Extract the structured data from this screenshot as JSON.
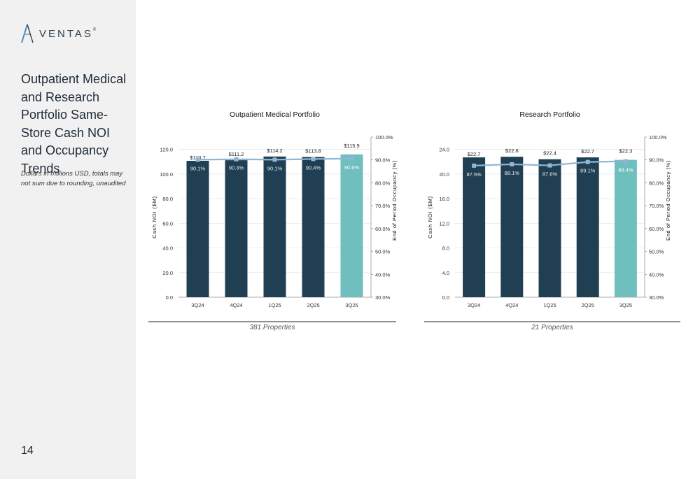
{
  "brand": {
    "name": "VENTAS",
    "mark": "®"
  },
  "page": {
    "title": "Outpatient Medical and Research Portfolio Same-Store Cash NOI and Occupancy Trends",
    "subtitle": "Dollars in millions USD, totals may not sum due to rounding, unaudited",
    "number": "14"
  },
  "colors": {
    "bar": "#213f52",
    "bar_highlight": "#6fbfbf",
    "line": "#8fb6d4",
    "sidebar": "#f1f1f1"
  },
  "chart_data": [
    {
      "type": "bar",
      "title": "Outpatient Medical Portfolio",
      "caption": "381 Properties",
      "ylabel": "Cash NOI ($M)",
      "y2label": "End of Period Occupancy (%)",
      "categories": [
        "3Q24",
        "4Q24",
        "1Q25",
        "2Q25",
        "3Q25"
      ],
      "ylim": [
        0,
        130
      ],
      "yticks": [
        0,
        20,
        40,
        60,
        80,
        100,
        120
      ],
      "ytick_labels": [
        "0.0",
        "20.0",
        "40.0",
        "60.0",
        "80.0",
        "100.0",
        "120.0"
      ],
      "y2lim": [
        30,
        100
      ],
      "y2ticks": [
        30,
        40,
        50,
        60,
        70,
        80,
        90,
        100
      ],
      "y2tick_labels": [
        "30.0%",
        "40.0%",
        "50.0%",
        "60.0%",
        "70.0%",
        "80.0%",
        "90.0%",
        "100.0%"
      ],
      "series": [
        {
          "type": "bar",
          "values": [
            110.7,
            111.2,
            114.2,
            113.8,
            115.9
          ],
          "labels": [
            "$110.7",
            "$111.2",
            "$114.2",
            "$113.8",
            "$115.9"
          ]
        },
        {
          "type": "line",
          "axis": "secondary",
          "values": [
            90.1,
            90.3,
            90.1,
            90.4,
            90.6
          ],
          "labels": [
            "90.1%",
            "90.3%",
            "90.1%",
            "90.4%",
            "90.6%"
          ]
        }
      ]
    },
    {
      "type": "bar",
      "title": "Research Portfolio",
      "caption": "21 Properties",
      "ylabel": "Cash NOI ($M)",
      "y2label": "End of Period Occupancy (%)",
      "categories": [
        "3Q24",
        "4Q24",
        "1Q25",
        "2Q25",
        "3Q25"
      ],
      "ylim": [
        0,
        26
      ],
      "yticks": [
        0,
        4,
        8,
        12,
        16,
        20,
        24
      ],
      "ytick_labels": [
        "0.0",
        "4.0",
        "8.0",
        "12.0",
        "16.0",
        "20.0",
        "24.0"
      ],
      "y2lim": [
        30,
        100
      ],
      "y2ticks": [
        30,
        40,
        50,
        60,
        70,
        80,
        90,
        100
      ],
      "y2tick_labels": [
        "30.0%",
        "40.0%",
        "50.0%",
        "60.0%",
        "70.0%",
        "80.0%",
        "90.0%",
        "100.0%"
      ],
      "series": [
        {
          "type": "bar",
          "values": [
            22.7,
            22.8,
            22.4,
            22.7,
            22.3
          ],
          "labels": [
            "$22.7",
            "$22.8",
            "$22.4",
            "$22.7",
            "$22.3"
          ]
        },
        {
          "type": "line",
          "axis": "secondary",
          "values": [
            87.5,
            88.1,
            87.6,
            89.1,
            89.4
          ],
          "labels": [
            "87.5%",
            "88.1%",
            "87.6%",
            "89.1%",
            "89.4%"
          ]
        }
      ]
    }
  ]
}
